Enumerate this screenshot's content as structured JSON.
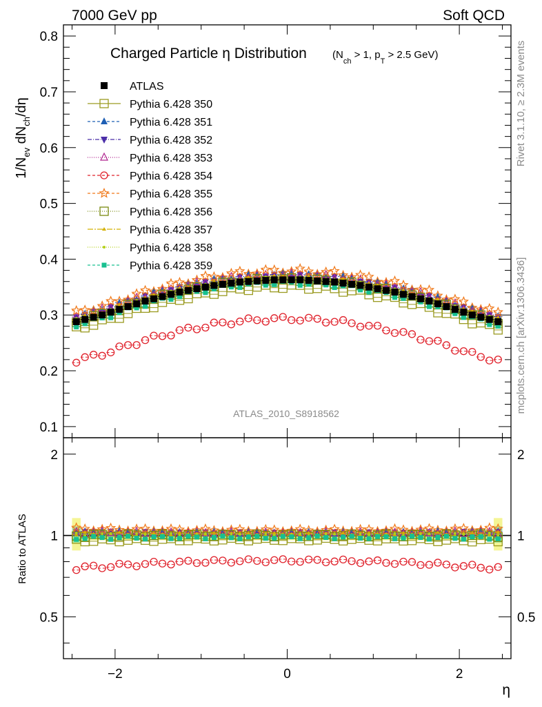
{
  "header": {
    "left": "7000 GeV pp",
    "right": "Soft QCD"
  },
  "side": {
    "rivet": "Rivet 3.1.10, ≥ 2.3M events",
    "mcplots": "mcplots.cern.ch [arXiv:1306.3436]"
  },
  "chart_data": {
    "type": "scatter",
    "title": "Charged Particle η Distribution",
    "title_condition": "(N_ch > 1, p_T > 2.5 GeV)",
    "ylabel": "1/N_ev dN_ch/dη",
    "xlabel": "η",
    "ratio_ylabel": "Ratio to ATLAS",
    "watermark": "ATLAS_2010_S8918562",
    "xlim": [
      -2.6,
      2.6
    ],
    "ylim": [
      0.08,
      0.82
    ],
    "ratio_ylim": [
      0.35,
      2.3
    ],
    "x_ticks": [
      "−2",
      "0",
      "2"
    ],
    "y_ticks": [
      "0.1",
      "0.2",
      "0.3",
      "0.4",
      "0.5",
      "0.6",
      "0.7",
      "0.8"
    ],
    "ratio_y_ticks": [
      "0.5",
      "1",
      "2"
    ],
    "legend_position": "top-left",
    "x": [
      -2.45,
      -2.35,
      -2.25,
      -2.15,
      -2.05,
      -1.95,
      -1.85,
      -1.75,
      -1.65,
      -1.55,
      -1.45,
      -1.35,
      -1.25,
      -1.15,
      -1.05,
      -0.95,
      -0.85,
      -0.75,
      -0.65,
      -0.55,
      -0.45,
      -0.35,
      -0.25,
      -0.15,
      -0.05,
      0.05,
      0.15,
      0.25,
      0.35,
      0.45,
      0.55,
      0.65,
      0.75,
      0.85,
      0.95,
      1.05,
      1.15,
      1.25,
      1.35,
      1.45,
      1.55,
      1.65,
      1.75,
      1.85,
      1.95,
      2.05,
      2.15,
      2.25,
      2.35,
      2.45
    ],
    "series": [
      {
        "name": "ATLAS",
        "color": "#000000",
        "marker": "filled-square",
        "offset": 0.0,
        "is_data": true,
        "values": [
          0.288,
          0.292,
          0.296,
          0.3,
          0.305,
          0.31,
          0.315,
          0.32,
          0.325,
          0.329,
          0.333,
          0.337,
          0.341,
          0.344,
          0.347,
          0.35,
          0.353,
          0.355,
          0.357,
          0.359,
          0.36,
          0.361,
          0.362,
          0.363,
          0.363,
          0.363,
          0.363,
          0.362,
          0.361,
          0.36,
          0.359,
          0.357,
          0.355,
          0.353,
          0.35,
          0.347,
          0.344,
          0.341,
          0.337,
          0.333,
          0.329,
          0.325,
          0.32,
          0.315,
          0.31,
          0.305,
          0.3,
          0.296,
          0.292,
          0.288
        ]
      },
      {
        "name": "Pythia 6.428 350",
        "color": "#9a9a20",
        "marker": "open-square",
        "offset": -0.012,
        "dash": "",
        "values": []
      },
      {
        "name": "Pythia 6.428 351",
        "color": "#1f5fb4",
        "marker": "filled-triangle-up",
        "offset": 0.01,
        "dash": "4,3",
        "values": []
      },
      {
        "name": "Pythia 6.428 352",
        "color": "#4b2ea8",
        "marker": "filled-triangle-down",
        "offset": 0.006,
        "dash": "6,2,1,2",
        "values": []
      },
      {
        "name": "Pythia 6.428 353",
        "color": "#b0248f",
        "marker": "open-triangle-up",
        "offset": 0.008,
        "dash": "1,2",
        "values": []
      },
      {
        "name": "Pythia 6.428 354",
        "color": "#e0202a",
        "marker": "open-circle",
        "offset": -0.07,
        "dash": "4,3",
        "values": []
      },
      {
        "name": "Pythia 6.428 355",
        "color": "#f07818",
        "marker": "open-star",
        "offset": 0.016,
        "dash": "4,3",
        "values": []
      },
      {
        "name": "Pythia 6.428 356",
        "color": "#7a8a10",
        "marker": "open-square",
        "offset": 0.0,
        "dash": "1,2",
        "values": []
      },
      {
        "name": "Pythia 6.428 357",
        "color": "#d4b000",
        "marker": "small-triangle",
        "offset": 0.004,
        "dash": "8,2,2,2",
        "values": []
      },
      {
        "name": "Pythia 6.428 358",
        "color": "#b4d018",
        "marker": "small-dot",
        "offset": 0.002,
        "dash": "1,2",
        "values": []
      },
      {
        "name": "Pythia 6.428 359",
        "color": "#18c090",
        "marker": "filled-square-small",
        "offset": -0.006,
        "dash": "4,3",
        "values": []
      }
    ]
  }
}
